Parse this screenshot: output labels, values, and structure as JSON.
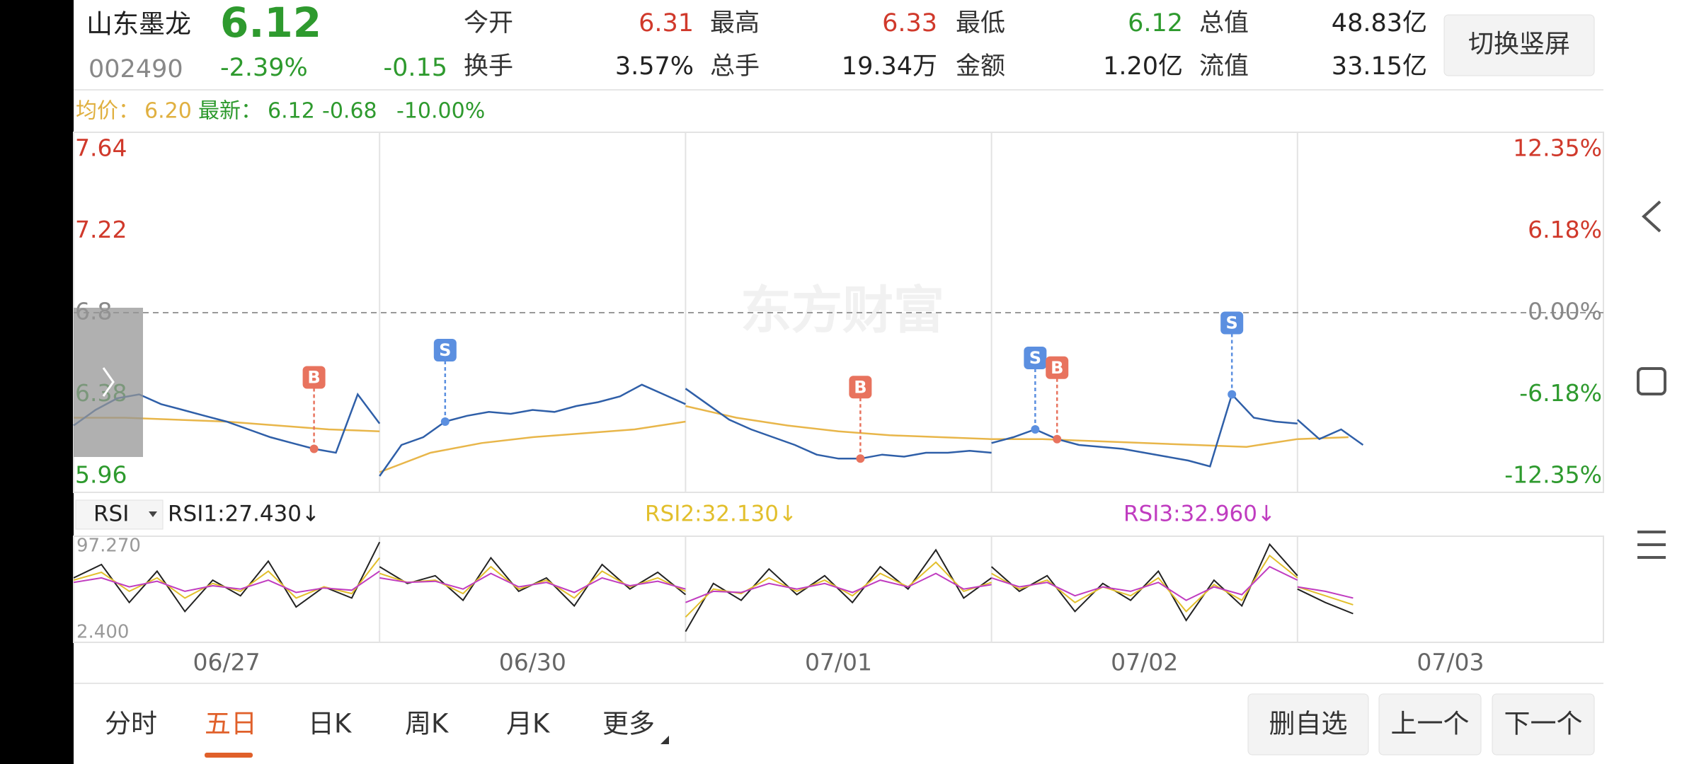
{
  "header": {
    "name": "山东墨龙",
    "price": "6.12",
    "code": "002490",
    "change_pct": "-2.39%",
    "change": "-0.15",
    "stats": [
      {
        "label": "今开",
        "value": "6.31",
        "color": "#d0392b"
      },
      {
        "label": "最高",
        "value": "6.33",
        "color": "#d0392b"
      },
      {
        "label": "最低",
        "value": "6.12",
        "color": "#2e9a2e"
      },
      {
        "label": "总值",
        "value": "48.83亿",
        "color": "#222222"
      },
      {
        "label": "换手",
        "value": "3.57%",
        "color": "#222222"
      },
      {
        "label": "总手",
        "value": "19.34万",
        "color": "#222222"
      },
      {
        "label": "金额",
        "value": "1.20亿",
        "color": "#222222"
      },
      {
        "label": "流值",
        "value": "33.15亿",
        "color": "#222222"
      }
    ],
    "button": "切换竖屏"
  },
  "info_bar": {
    "avg_label": "均价：",
    "avg": "6.20",
    "latest_label": "最新：",
    "latest": "6.12",
    "change": "-0.68",
    "change_pct": "-10.00%"
  },
  "chart_data": [
    {
      "type": "line",
      "watermark": "东方财富",
      "categories": [
        "06/27",
        "06/30",
        "07/01",
        "07/02",
        "07/03"
      ],
      "ylim": [
        5.96,
        7.64
      ],
      "yticks": [
        7.64,
        7.22,
        6.8,
        6.38,
        5.96
      ],
      "reference": 6.8,
      "y2lim": [
        -12.35,
        12.35
      ],
      "y2ticks": [
        {
          "value": 12.35,
          "label": "12.35%"
        },
        {
          "value": 6.18,
          "label": "6.18%"
        },
        {
          "value": 0,
          "label": "0.00%"
        },
        {
          "value": -6.18,
          "label": "-6.18%"
        },
        {
          "value": -12.35,
          "label": "-12.35%"
        }
      ],
      "series": [
        {
          "color": "#2f5fa8",
          "values": [
            [
              6.22,
              6.3,
              6.36,
              6.38,
              6.33,
              6.3,
              6.27,
              6.24,
              6.2,
              6.16,
              6.13,
              6.1,
              6.08,
              6.38,
              6.23
            ],
            [
              5.96,
              6.12,
              6.16,
              6.24,
              6.27,
              6.29,
              6.28,
              6.3,
              6.29,
              6.32,
              6.34,
              6.37,
              6.43,
              6.38,
              6.33
            ],
            [
              6.41,
              6.33,
              6.25,
              6.2,
              6.16,
              6.12,
              6.07,
              6.05,
              6.05,
              6.07,
              6.06,
              6.08,
              6.08,
              6.09,
              6.08
            ],
            [
              6.13,
              6.16,
              6.2,
              6.15,
              6.12,
              6.11,
              6.1,
              6.08,
              6.06,
              6.04,
              6.01,
              6.38,
              6.26,
              6.24,
              6.23
            ],
            [
              6.25,
              6.15,
              6.2,
              6.12
            ]
          ]
        },
        {
          "color": "#e8b64a",
          "values": [
            [
              6.26,
              6.26,
              6.25,
              6.24,
              6.22,
              6.2,
              6.19
            ],
            [
              5.98,
              6.08,
              6.13,
              6.16,
              6.18,
              6.2,
              6.24
            ],
            [
              6.32,
              6.26,
              6.22,
              6.19,
              6.17,
              6.16,
              6.15
            ],
            [
              6.15,
              6.15,
              6.14,
              6.13,
              6.12,
              6.11,
              6.15
            ],
            [
              6.15,
              6.16
            ]
          ]
        }
      ],
      "signals": [
        {
          "label": "B",
          "day": 0,
          "index": 11,
          "color": "#e8735e"
        },
        {
          "label": "S",
          "day": 1,
          "index": 3,
          "color": "#5b8fe0"
        },
        {
          "label": "B",
          "day": 2,
          "index": 8,
          "color": "#e8735e"
        },
        {
          "label": "S",
          "day": 3,
          "index": 2,
          "color": "#5b8fe0"
        },
        {
          "label": "B",
          "day": 3,
          "index": 3,
          "color": "#e8735e"
        },
        {
          "label": "S",
          "day": 3,
          "index": 11,
          "color": "#5b8fe0"
        }
      ]
    },
    {
      "type": "line",
      "indicator": "RSI",
      "ylim": [
        2.4,
        97.27
      ],
      "yticks": [
        {
          "value": 97.27,
          "label": "97.270"
        },
        {
          "value": 2.4,
          "label": "2.400"
        }
      ],
      "series": [
        {
          "name": "RSI1:27.430↓",
          "color": "#222222",
          "values": [
            [
              60,
              72,
              38,
              66,
              30,
              58,
              44,
              75,
              34,
              52,
              42,
              92
            ],
            [
              70,
              55,
              62,
              40,
              78,
              48,
              60,
              35,
              72,
              50,
              65,
              45
            ],
            [
              12,
              55,
              40,
              68,
              45,
              62,
              38,
              70,
              50,
              85,
              42,
              60
            ],
            [
              70,
              48,
              62,
              30,
              55,
              40,
              66,
              22,
              58,
              35,
              90,
              62
            ],
            [
              50,
              38,
              28
            ]
          ]
        },
        {
          "name": "RSI2:32.130↓",
          "color": "#e2bf2c",
          "values": [
            [
              58,
              65,
              48,
              60,
              42,
              55,
              48,
              66,
              42,
              52,
              46,
              78
            ],
            [
              64,
              56,
              58,
              46,
              70,
              50,
              58,
              42,
              66,
              52,
              60,
              48
            ],
            [
              25,
              50,
              46,
              60,
              48,
              58,
              44,
              64,
              52,
              74,
              48,
              56
            ],
            [
              64,
              50,
              58,
              38,
              52,
              44,
              60,
              30,
              54,
              40,
              80,
              60
            ],
            [
              52,
              44,
              36
            ]
          ]
        },
        {
          "name": "RSI3:32.960↓",
          "color": "#c03cc0",
          "values": [
            [
              56,
              60,
              52,
              57,
              48,
              53,
              50,
              58,
              47,
              51,
              49,
              66
            ],
            [
              60,
              56,
              57,
              50,
              64,
              52,
              56,
              47,
              60,
              53,
              57,
              50
            ],
            [
              38,
              48,
              47,
              55,
              50,
              55,
              47,
              58,
              52,
              64,
              50,
              54
            ],
            [
              60,
              52,
              56,
              44,
              52,
              48,
              56,
              40,
              52,
              45,
              70,
              58
            ],
            [
              52,
              48,
              42
            ]
          ]
        }
      ]
    }
  ],
  "tabs": [
    {
      "label": "分时",
      "active": false
    },
    {
      "label": "五日",
      "active": true
    },
    {
      "label": "日K",
      "active": false
    },
    {
      "label": "周K",
      "active": false
    },
    {
      "label": "月K",
      "active": false
    },
    {
      "label": "更多",
      "active": false
    }
  ],
  "buttons": [
    "删自选",
    "上一个",
    "下一个"
  ]
}
